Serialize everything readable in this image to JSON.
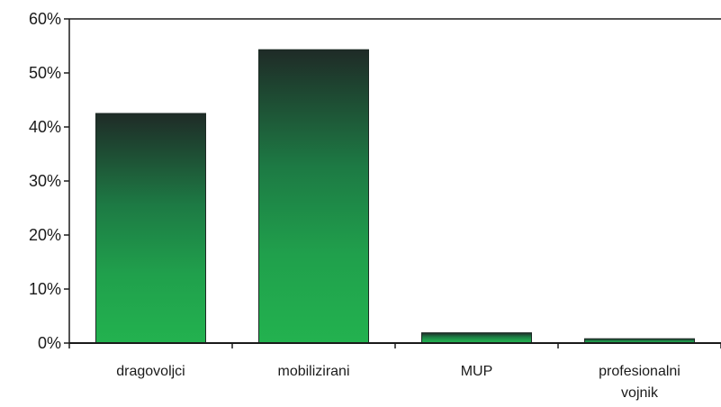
{
  "chart_data": {
    "type": "bar",
    "title": "",
    "xlabel": "",
    "ylabel": "",
    "categories": [
      [
        "dragovoljci"
      ],
      [
        "mobilizirani"
      ],
      [
        "MUP"
      ],
      [
        "profesionalni",
        "vojnik"
      ]
    ],
    "values": [
      42.5,
      54.3,
      1.9,
      0.8
    ],
    "ylim": [
      0,
      60
    ],
    "yticks": [
      0,
      10,
      20,
      30,
      40,
      50,
      60
    ],
    "ytick_labels": [
      "0%",
      "10%",
      "20%",
      "30%",
      "40%",
      "50%",
      "60%"
    ],
    "grid": false,
    "legend": "none",
    "colors": {
      "bar_top": "#1f2b27",
      "bar_mid": "#1d8a48",
      "bar_bottom": "#23b24f",
      "axis": "#1a1a1a"
    }
  }
}
